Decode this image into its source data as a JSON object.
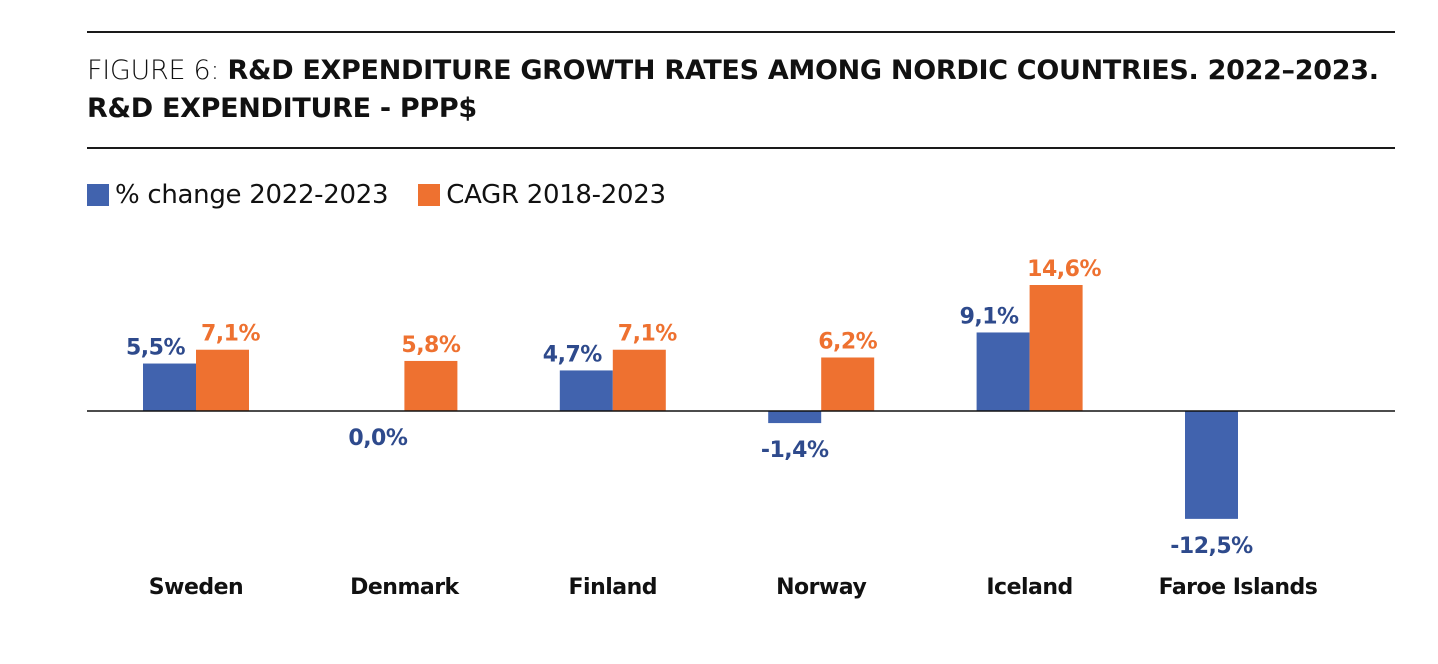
{
  "chart_data": {
    "type": "bar",
    "title_prefix": "FIGURE 6: ",
    "title": "R&D EXPENDITURE GROWTH RATES AMONG NORDIC COUNTRIES. 2022–2023.",
    "subtitle": "R&D EXPENDITURE - PPP$",
    "xlabel": "",
    "ylabel": "",
    "grid": false,
    "legend_position": "top-left",
    "categories": [
      "Sweden",
      "Denmark",
      "Finland",
      "Norway",
      "Iceland",
      "Faroe Islands"
    ],
    "series": [
      {
        "name": "% change 2022-2023",
        "color": "#4163AE",
        "label_color": "#2E4A8C",
        "values": [
          5.5,
          0.0,
          4.7,
          -1.4,
          9.1,
          -12.5
        ],
        "labels": [
          "5,5%",
          "0,0%",
          "4,7%",
          "-1,4%",
          "9,1%",
          "-12,5%"
        ]
      },
      {
        "name": "CAGR 2018-2023",
        "color": "#EE7130",
        "label_color": "#EE7130",
        "values": [
          7.1,
          5.8,
          7.1,
          6.2,
          14.6,
          null
        ],
        "labels": [
          "7,1%",
          "5,8%",
          "7,1%",
          "6,2%",
          "14,6%",
          null
        ]
      }
    ],
    "ylim": [
      -14,
      18
    ]
  }
}
